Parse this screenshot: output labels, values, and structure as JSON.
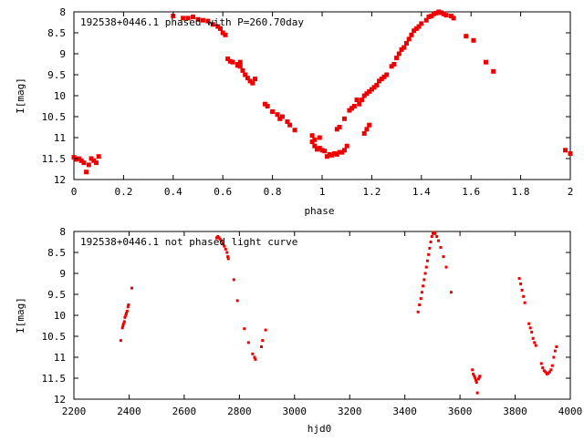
{
  "chart_data": [
    {
      "type": "scatter",
      "title": "192538+0446.1 phased with P=260.70day",
      "xlabel": "phase",
      "ylabel": "I[mag]",
      "xlim": [
        0,
        2
      ],
      "ylim": [
        12,
        8
      ],
      "y_inverted": true,
      "x_ticks": [
        "0",
        "0.2",
        "0.4",
        "0.6",
        "0.8",
        "1",
        "1.2",
        "1.4",
        "1.6",
        "1.8",
        "2"
      ],
      "y_ticks": [
        "8",
        "8.5",
        "9",
        "9.5",
        "10",
        "10.5",
        "11",
        "11.5",
        "12"
      ],
      "marker_color": "#ee0000",
      "grid": false,
      "points": [
        [
          0.0,
          11.47
        ],
        [
          0.01,
          11.52
        ],
        [
          0.02,
          11.5
        ],
        [
          0.03,
          11.55
        ],
        [
          0.04,
          11.6
        ],
        [
          0.05,
          11.82
        ],
        [
          0.06,
          11.65
        ],
        [
          0.07,
          11.5
        ],
        [
          0.08,
          11.55
        ],
        [
          0.09,
          11.6
        ],
        [
          0.1,
          11.45
        ],
        [
          0.4,
          8.1
        ],
        [
          0.44,
          8.15
        ],
        [
          0.46,
          8.15
        ],
        [
          0.48,
          8.12
        ],
        [
          0.5,
          8.18
        ],
        [
          0.52,
          8.2
        ],
        [
          0.54,
          8.22
        ],
        [
          0.56,
          8.3
        ],
        [
          0.58,
          8.35
        ],
        [
          0.59,
          8.4
        ],
        [
          0.6,
          8.5
        ],
        [
          0.61,
          8.55
        ],
        [
          0.62,
          9.12
        ],
        [
          0.63,
          9.18
        ],
        [
          0.64,
          9.2
        ],
        [
          0.66,
          9.28
        ],
        [
          0.67,
          9.3
        ],
        [
          0.68,
          9.4
        ],
        [
          0.69,
          9.5
        ],
        [
          0.7,
          9.58
        ],
        [
          0.71,
          9.65
        ],
        [
          0.72,
          9.7
        ],
        [
          0.73,
          9.6
        ],
        [
          0.66,
          9.25
        ],
        [
          0.67,
          9.2
        ],
        [
          0.77,
          10.2
        ],
        [
          0.78,
          10.25
        ],
        [
          0.8,
          10.38
        ],
        [
          0.82,
          10.45
        ],
        [
          0.83,
          10.55
        ],
        [
          0.84,
          10.5
        ],
        [
          0.86,
          10.62
        ],
        [
          0.87,
          10.7
        ],
        [
          0.89,
          10.82
        ],
        [
          0.96,
          10.95
        ],
        [
          0.96,
          11.1
        ],
        [
          0.97,
          11.2
        ],
        [
          0.98,
          11.28
        ],
        [
          0.99,
          11.25
        ],
        [
          1.0,
          11.3
        ],
        [
          1.01,
          11.32
        ],
        [
          0.97,
          11.05
        ],
        [
          0.99,
          11.0
        ],
        [
          1.02,
          11.45
        ],
        [
          1.03,
          11.4
        ],
        [
          1.04,
          11.42
        ],
        [
          1.05,
          11.38
        ],
        [
          1.06,
          11.4
        ],
        [
          1.07,
          11.35
        ],
        [
          1.08,
          11.35
        ],
        [
          1.09,
          11.3
        ],
        [
          1.1,
          11.2
        ],
        [
          1.06,
          10.8
        ],
        [
          1.07,
          10.75
        ],
        [
          1.09,
          10.55
        ],
        [
          1.11,
          10.35
        ],
        [
          1.12,
          10.3
        ],
        [
          1.13,
          10.25
        ],
        [
          1.14,
          10.1
        ],
        [
          1.15,
          10.2
        ],
        [
          1.16,
          10.1
        ],
        [
          1.17,
          10.0
        ],
        [
          1.18,
          9.95
        ],
        [
          1.19,
          9.9
        ],
        [
          1.2,
          9.85
        ],
        [
          1.21,
          9.8
        ],
        [
          1.22,
          9.75
        ],
        [
          1.23,
          9.65
        ],
        [
          1.24,
          9.6
        ],
        [
          1.25,
          9.55
        ],
        [
          1.26,
          9.5
        ],
        [
          1.17,
          10.9
        ],
        [
          1.18,
          10.8
        ],
        [
          1.19,
          10.7
        ],
        [
          1.28,
          9.3
        ],
        [
          1.29,
          9.25
        ],
        [
          1.3,
          9.1
        ],
        [
          1.31,
          9.0
        ],
        [
          1.32,
          8.9
        ],
        [
          1.33,
          8.85
        ],
        [
          1.34,
          8.75
        ],
        [
          1.35,
          8.65
        ],
        [
          1.36,
          8.55
        ],
        [
          1.37,
          8.45
        ],
        [
          1.38,
          8.4
        ],
        [
          1.39,
          8.35
        ],
        [
          1.4,
          8.28
        ],
        [
          1.42,
          8.2
        ],
        [
          1.43,
          8.12
        ],
        [
          1.44,
          8.1
        ],
        [
          1.45,
          8.05
        ],
        [
          1.46,
          8.03
        ],
        [
          1.47,
          8.0
        ],
        [
          1.48,
          8.02
        ],
        [
          1.49,
          8.05
        ],
        [
          1.5,
          8.08
        ],
        [
          1.52,
          8.1
        ],
        [
          1.53,
          8.15
        ],
        [
          1.58,
          8.58
        ],
        [
          1.61,
          8.68
        ],
        [
          1.66,
          9.2
        ],
        [
          1.69,
          9.42
        ],
        [
          1.98,
          11.3
        ],
        [
          2.0,
          11.38
        ]
      ]
    },
    {
      "type": "scatter",
      "title": "192538+0446.1 not phased light curve",
      "xlabel": "hjd0",
      "ylabel": "I[mag]",
      "xlim": [
        2200,
        4000
      ],
      "ylim": [
        12,
        8
      ],
      "y_inverted": true,
      "x_ticks": [
        "2200",
        "2400",
        "2600",
        "2800",
        "3000",
        "3200",
        "3400",
        "3600",
        "3800",
        "4000"
      ],
      "y_ticks": [
        "8",
        "8.5",
        "9",
        "9.5",
        "10",
        "10.5",
        "11",
        "11.5",
        "12"
      ],
      "marker_color": "#ee0000",
      "grid": false,
      "points": [
        [
          2370,
          10.6
        ],
        [
          2376,
          10.3
        ],
        [
          2378,
          10.25
        ],
        [
          2380,
          10.2
        ],
        [
          2383,
          10.15
        ],
        [
          2385,
          10.05
        ],
        [
          2388,
          10.0
        ],
        [
          2390,
          9.95
        ],
        [
          2393,
          9.9
        ],
        [
          2396,
          9.8
        ],
        [
          2398,
          9.75
        ],
        [
          2410,
          9.35
        ],
        [
          2718,
          8.15
        ],
        [
          2722,
          8.12
        ],
        [
          2726,
          8.15
        ],
        [
          2730,
          8.18
        ],
        [
          2735,
          8.22
        ],
        [
          2740,
          8.28
        ],
        [
          2745,
          8.35
        ],
        [
          2750,
          8.42
        ],
        [
          2755,
          8.5
        ],
        [
          2758,
          8.6
        ],
        [
          2760,
          8.65
        ],
        [
          2780,
          9.15
        ],
        [
          2793,
          9.65
        ],
        [
          2818,
          10.32
        ],
        [
          2833,
          10.65
        ],
        [
          2848,
          10.92
        ],
        [
          2855,
          11.0
        ],
        [
          2858,
          11.05
        ],
        [
          2880,
          10.75
        ],
        [
          2884,
          10.6
        ],
        [
          2895,
          10.35
        ],
        [
          3448,
          9.92
        ],
        [
          3453,
          9.75
        ],
        [
          3458,
          9.6
        ],
        [
          3462,
          9.45
        ],
        [
          3466,
          9.3
        ],
        [
          3470,
          9.15
        ],
        [
          3474,
          9.0
        ],
        [
          3478,
          8.85
        ],
        [
          3482,
          8.7
        ],
        [
          3486,
          8.55
        ],
        [
          3490,
          8.4
        ],
        [
          3494,
          8.25
        ],
        [
          3498,
          8.12
        ],
        [
          3502,
          8.05
        ],
        [
          3506,
          8.02
        ],
        [
          3510,
          8.05
        ],
        [
          3516,
          8.12
        ],
        [
          3522,
          8.22
        ],
        [
          3530,
          8.38
        ],
        [
          3540,
          8.6
        ],
        [
          3550,
          8.85
        ],
        [
          3568,
          9.45
        ],
        [
          3645,
          11.3
        ],
        [
          3648,
          11.4
        ],
        [
          3652,
          11.45
        ],
        [
          3655,
          11.5
        ],
        [
          3658,
          11.55
        ],
        [
          3660,
          11.6
        ],
        [
          3663,
          11.85
        ],
        [
          3667,
          11.52
        ],
        [
          3670,
          11.48
        ],
        [
          3672,
          11.45
        ],
        [
          3815,
          9.12
        ],
        [
          3820,
          9.25
        ],
        [
          3825,
          9.4
        ],
        [
          3830,
          9.55
        ],
        [
          3835,
          9.7
        ],
        [
          3850,
          10.2
        ],
        [
          3855,
          10.3
        ],
        [
          3860,
          10.4
        ],
        [
          3865,
          10.55
        ],
        [
          3870,
          10.65
        ],
        [
          3875,
          10.72
        ],
        [
          3895,
          11.15
        ],
        [
          3900,
          11.25
        ],
        [
          3905,
          11.32
        ],
        [
          3910,
          11.35
        ],
        [
          3915,
          11.4
        ],
        [
          3920,
          11.38
        ],
        [
          3925,
          11.35
        ],
        [
          3930,
          11.3
        ],
        [
          3935,
          11.2
        ],
        [
          3940,
          11.0
        ],
        [
          3945,
          10.85
        ],
        [
          3950,
          10.75
        ]
      ]
    }
  ]
}
